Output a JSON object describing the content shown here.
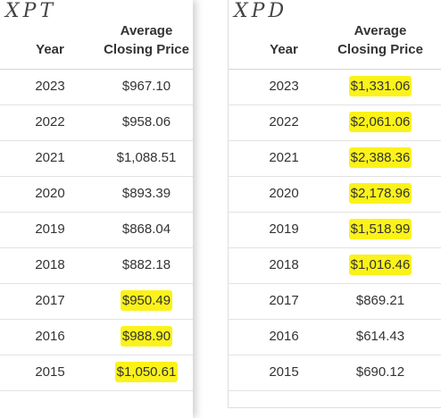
{
  "tables": [
    {
      "label": "XPT",
      "headers": {
        "year": "Year",
        "price": [
          "Average",
          "Closing Price"
        ]
      },
      "rows": [
        {
          "year": "2023",
          "price": "$967.10",
          "highlighted": false
        },
        {
          "year": "2022",
          "price": "$958.06",
          "highlighted": false
        },
        {
          "year": "2021",
          "price": "$1,088.51",
          "highlighted": false
        },
        {
          "year": "2020",
          "price": "$893.39",
          "highlighted": false
        },
        {
          "year": "2019",
          "price": "$868.04",
          "highlighted": false
        },
        {
          "year": "2018",
          "price": "$882.18",
          "highlighted": false
        },
        {
          "year": "2017",
          "price": "$950.49",
          "highlighted": true
        },
        {
          "year": "2016",
          "price": "$988.90",
          "highlighted": true
        },
        {
          "year": "2015",
          "price": "$1,050.61",
          "highlighted": true
        }
      ]
    },
    {
      "label": "XPD",
      "headers": {
        "year": "Year",
        "price": [
          "Average",
          "Closing Price"
        ]
      },
      "rows": [
        {
          "year": "2023",
          "price": "$1,331.06",
          "highlighted": true
        },
        {
          "year": "2022",
          "price": "$2,061.06",
          "highlighted": true
        },
        {
          "year": "2021",
          "price": "$2,388.36",
          "highlighted": true
        },
        {
          "year": "2020",
          "price": "$2,178.96",
          "highlighted": true
        },
        {
          "year": "2019",
          "price": "$1,518.99",
          "highlighted": true
        },
        {
          "year": "2018",
          "price": "$1,016.46",
          "highlighted": true
        },
        {
          "year": "2017",
          "price": "$869.21",
          "highlighted": false
        },
        {
          "year": "2016",
          "price": "$614.43",
          "highlighted": false
        },
        {
          "year": "2015",
          "price": "$690.12",
          "highlighted": false
        }
      ]
    }
  ]
}
